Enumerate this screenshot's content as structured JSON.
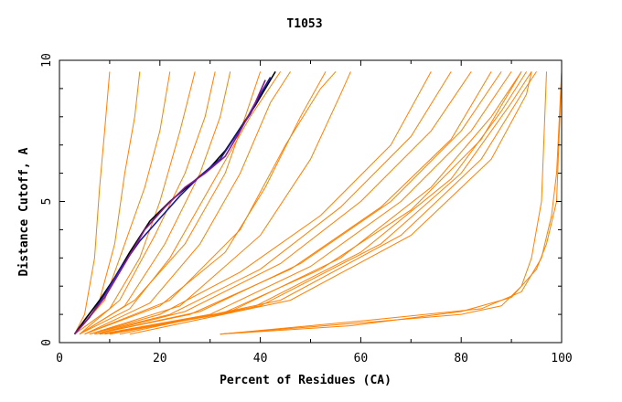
{
  "chart_data": {
    "type": "line",
    "title": "T1053",
    "xlabel": "Percent of Residues (CA)",
    "ylabel": "Distance Cutoff, A",
    "xlim": [
      0,
      100
    ],
    "ylim": [
      0,
      10
    ],
    "x_ticks": [
      "0",
      "20",
      "40",
      "60",
      "80",
      "100"
    ],
    "y_ticks": [
      "0",
      "5",
      "10"
    ],
    "grid": false,
    "background_series_color": "#ff8000",
    "highlight_colors": [
      "#000000",
      "#1a1aa0",
      "#8a1a8a"
    ],
    "series": [
      {
        "group": "background",
        "values": [
          [
            3,
            0.3
          ],
          [
            8,
            1.5
          ],
          [
            11,
            3.5
          ],
          [
            13,
            6
          ],
          [
            15,
            8
          ],
          [
            16,
            9.6
          ]
        ]
      },
      {
        "group": "background",
        "values": [
          [
            3,
            0.3
          ],
          [
            5,
            1
          ],
          [
            7,
            3
          ],
          [
            8,
            5.5
          ],
          [
            9,
            7.5
          ],
          [
            10,
            9.6
          ]
        ]
      },
      {
        "group": "background",
        "values": [
          [
            3,
            0.3
          ],
          [
            9,
            1.5
          ],
          [
            13,
            3.5
          ],
          [
            17,
            5.5
          ],
          [
            20,
            7.5
          ],
          [
            22,
            9.6
          ]
        ]
      },
      {
        "group": "background",
        "values": [
          [
            3,
            0.3
          ],
          [
            10,
            1.2
          ],
          [
            16,
            3
          ],
          [
            20,
            5
          ],
          [
            24,
            7.5
          ],
          [
            27,
            9.6
          ]
        ]
      },
      {
        "group": "background",
        "values": [
          [
            4,
            0.3
          ],
          [
            12,
            1.5
          ],
          [
            19,
            3.8
          ],
          [
            25,
            6
          ],
          [
            29,
            8
          ],
          [
            31,
            9.6
          ]
        ]
      },
      {
        "group": "background",
        "values": [
          [
            4,
            0.3
          ],
          [
            13,
            1.3
          ],
          [
            21,
            3.5
          ],
          [
            28,
            6
          ],
          [
            32,
            8
          ],
          [
            34,
            9.6
          ]
        ]
      },
      {
        "group": "background",
        "values": [
          [
            4,
            0.3
          ],
          [
            15,
            1.5
          ],
          [
            25,
            3.5
          ],
          [
            33,
            6
          ],
          [
            37,
            8
          ],
          [
            40,
            9.6
          ]
        ]
      },
      {
        "group": "background",
        "values": [
          [
            4,
            0.3
          ],
          [
            14,
            1.2
          ],
          [
            22,
            3
          ],
          [
            30,
            5.5
          ],
          [
            38,
            8
          ],
          [
            44,
            9.6
          ]
        ]
      },
      {
        "group": "background",
        "values": [
          [
            5,
            0.3
          ],
          [
            18,
            1.4
          ],
          [
            28,
            3.5
          ],
          [
            36,
            6
          ],
          [
            42,
            8.5
          ],
          [
            46,
            9.6
          ]
        ]
      },
      {
        "group": "background",
        "values": [
          [
            5,
            0.3
          ],
          [
            20,
            1.3
          ],
          [
            33,
            3.2
          ],
          [
            41,
            5.5
          ],
          [
            48,
            8
          ],
          [
            53,
            9.6
          ]
        ]
      },
      {
        "group": "background",
        "values": [
          [
            5,
            0.3
          ],
          [
            22,
            1.5
          ],
          [
            36,
            4
          ],
          [
            45,
            7
          ],
          [
            52,
            9
          ],
          [
            55,
            9.6
          ]
        ]
      },
      {
        "group": "background",
        "values": [
          [
            6,
            0.3
          ],
          [
            24,
            1.3
          ],
          [
            40,
            3.8
          ],
          [
            50,
            6.5
          ],
          [
            56,
            8.8
          ],
          [
            58,
            9.6
          ]
        ]
      },
      {
        "group": "background",
        "values": [
          [
            6,
            0.3
          ],
          [
            20,
            1
          ],
          [
            36,
            2.5
          ],
          [
            52,
            4.5
          ],
          [
            66,
            7
          ],
          [
            74,
            9.6
          ]
        ]
      },
      {
        "group": "background",
        "values": [
          [
            6,
            0.3
          ],
          [
            22,
            1
          ],
          [
            40,
            2.6
          ],
          [
            56,
            4.8
          ],
          [
            70,
            7.3
          ],
          [
            78,
            9.6
          ]
        ]
      },
      {
        "group": "background",
        "values": [
          [
            7,
            0.3
          ],
          [
            25,
            1.1
          ],
          [
            44,
            2.8
          ],
          [
            60,
            5
          ],
          [
            74,
            7.5
          ],
          [
            82,
            9.6
          ]
        ]
      },
      {
        "group": "background",
        "values": [
          [
            7,
            0.3
          ],
          [
            26,
            1
          ],
          [
            46,
            2.6
          ],
          [
            64,
            4.8
          ],
          [
            78,
            7.2
          ],
          [
            86,
            9.6
          ]
        ]
      },
      {
        "group": "background",
        "values": [
          [
            7,
            0.3
          ],
          [
            28,
            1.1
          ],
          [
            48,
            2.8
          ],
          [
            66,
            5
          ],
          [
            80,
            7.5
          ],
          [
            88,
            9.6
          ]
        ]
      },
      {
        "group": "background",
        "values": [
          [
            8,
            0.3
          ],
          [
            30,
            1
          ],
          [
            50,
            2.7
          ],
          [
            68,
            5
          ],
          [
            82,
            7.5
          ],
          [
            90,
            9.6
          ]
        ]
      },
      {
        "group": "background",
        "values": [
          [
            8,
            0.3
          ],
          [
            32,
            1
          ],
          [
            52,
            2.6
          ],
          [
            70,
            4.7
          ],
          [
            84,
            7.2
          ],
          [
            92,
            9.6
          ]
        ]
      },
      {
        "group": "background",
        "values": [
          [
            9,
            0.3
          ],
          [
            34,
            1.1
          ],
          [
            56,
            3
          ],
          [
            74,
            5.5
          ],
          [
            86,
            8
          ],
          [
            92,
            9.6
          ]
        ]
      },
      {
        "group": "background",
        "values": [
          [
            10,
            0.3
          ],
          [
            38,
            1.2
          ],
          [
            60,
            3.2
          ],
          [
            78,
            5.8
          ],
          [
            88,
            8.2
          ],
          [
            93,
            9.6
          ]
        ]
      },
      {
        "group": "background",
        "values": [
          [
            10,
            0.3
          ],
          [
            40,
            1.3
          ],
          [
            64,
            3.5
          ],
          [
            80,
            6
          ],
          [
            90,
            8.5
          ],
          [
            94,
            9.6
          ]
        ]
      },
      {
        "group": "background",
        "values": [
          [
            12,
            0.3
          ],
          [
            44,
            1.5
          ],
          [
            68,
            3.8
          ],
          [
            84,
            6.5
          ],
          [
            92,
            8.8
          ],
          [
            95,
            9.6
          ]
        ]
      },
      {
        "group": "background",
        "values": [
          [
            14,
            0.3
          ],
          [
            46,
            1.5
          ],
          [
            70,
            3.8
          ],
          [
            86,
            6.5
          ],
          [
            93,
            8.8
          ],
          [
            94,
            9.6
          ]
        ]
      },
      {
        "group": "background",
        "values": [
          [
            32,
            0.3
          ],
          [
            60,
            0.7
          ],
          [
            80,
            1
          ],
          [
            88,
            1.3
          ],
          [
            92,
            2
          ],
          [
            94,
            3
          ],
          [
            95,
            4
          ],
          [
            96,
            5
          ],
          [
            97,
            9.6
          ]
        ]
      },
      {
        "group": "background",
        "values": [
          [
            32,
            0.3
          ],
          [
            62,
            0.8
          ],
          [
            84,
            1.2
          ],
          [
            92,
            1.8
          ],
          [
            96,
            3
          ],
          [
            98,
            4.5
          ],
          [
            99,
            6
          ],
          [
            100,
            9.6
          ]
        ]
      },
      {
        "group": "background",
        "values": [
          [
            32,
            0.3
          ],
          [
            58,
            0.6
          ],
          [
            80,
            1.1
          ],
          [
            90,
            1.6
          ],
          [
            95,
            2.6
          ],
          [
            97,
            3.5
          ],
          [
            99,
            5
          ],
          [
            100,
            9.6
          ]
        ]
      },
      {
        "group": "highlight",
        "values": [
          [
            3,
            0.3
          ],
          [
            5,
            0.8
          ],
          [
            8,
            1.5
          ],
          [
            11,
            2.3
          ],
          [
            14,
            3.2
          ],
          [
            18,
            4.3
          ],
          [
            22,
            5
          ],
          [
            26,
            5.6
          ],
          [
            30,
            6.2
          ],
          [
            33,
            6.8
          ],
          [
            36,
            7.6
          ],
          [
            39,
            8.4
          ],
          [
            41,
            9
          ],
          [
            43,
            9.6
          ]
        ]
      },
      {
        "group": "highlight",
        "values": [
          [
            3,
            0.3
          ],
          [
            6,
            0.9
          ],
          [
            9,
            1.7
          ],
          [
            12,
            2.6
          ],
          [
            16,
            3.6
          ],
          [
            20,
            4.4
          ],
          [
            24,
            5.2
          ],
          [
            28,
            5.9
          ],
          [
            32,
            6.5
          ],
          [
            35,
            7.3
          ],
          [
            38,
            8.1
          ],
          [
            40,
            8.8
          ],
          [
            42,
            9.4
          ]
        ]
      },
      {
        "group": "highlight",
        "values": [
          [
            3,
            0.3
          ],
          [
            5,
            0.7
          ],
          [
            9,
            1.6
          ],
          [
            13,
            2.8
          ],
          [
            17,
            4
          ],
          [
            21,
            4.8
          ],
          [
            25,
            5.5
          ],
          [
            29,
            6
          ],
          [
            33,
            6.6
          ],
          [
            36,
            7.5
          ],
          [
            39,
            8.5
          ],
          [
            41,
            9.3
          ]
        ]
      }
    ]
  }
}
